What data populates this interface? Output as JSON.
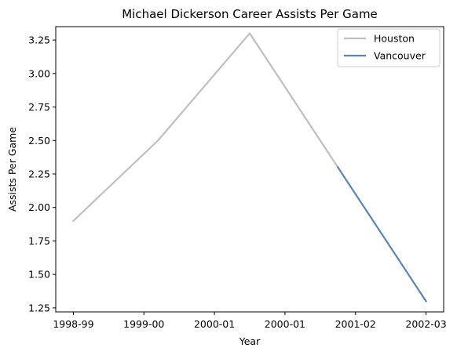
{
  "chart_data": {
    "type": "line",
    "title": "Michael Dickerson Career Assists Per Game",
    "xlabel": "Year",
    "ylabel": "Assists Per Game",
    "x_tick_labels": [
      "1998-99",
      "1999-00",
      "2000-01",
      "2000-01",
      "2001-02",
      "2002-03"
    ],
    "x_tick_positions": [
      0,
      1,
      2,
      3,
      4,
      5
    ],
    "xlim": [
      -0.25,
      5.25
    ],
    "ylim": [
      1.22,
      3.35
    ],
    "y_ticks": [
      1.25,
      1.5,
      1.75,
      2.0,
      2.25,
      2.5,
      2.75,
      3.0,
      3.25
    ],
    "y_tick_labels": [
      "1.25",
      "1.50",
      "1.75",
      "2.00",
      "2.25",
      "2.50",
      "2.75",
      "3.00",
      "3.25"
    ],
    "grid": false,
    "legend_position": "top-right",
    "series": [
      {
        "name": "Houston",
        "color": "#bfbfbf",
        "points": [
          [
            0,
            1.9
          ],
          [
            1.2,
            2.5
          ],
          [
            2.5,
            3.3
          ],
          [
            3.75,
            2.3
          ]
        ]
      },
      {
        "name": "Vancouver",
        "color": "#5b84b1",
        "points": [
          [
            3.75,
            2.3
          ],
          [
            5,
            1.3
          ]
        ]
      }
    ]
  }
}
